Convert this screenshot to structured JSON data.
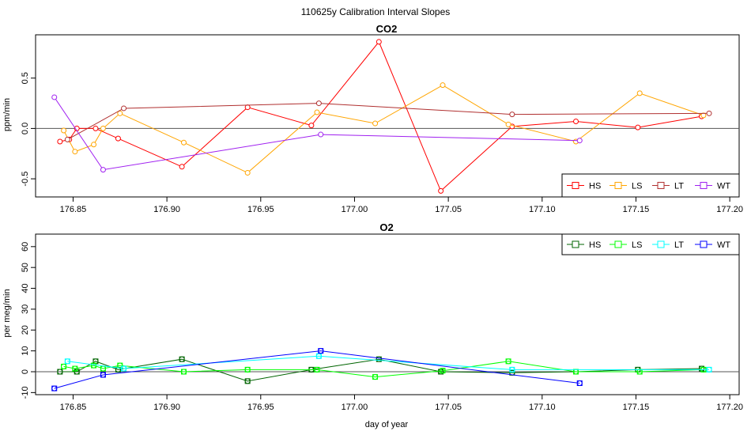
{
  "suptitle": "110625y   Calibration Interval Slopes",
  "chart_data": [
    {
      "type": "line",
      "title": "CO2",
      "xlabel": "",
      "ylabel": "ppm/min",
      "xlim": [
        176.83,
        177.205
      ],
      "ylim": [
        -0.68,
        0.93
      ],
      "xticks": [
        "176.85",
        "176.90",
        "176.95",
        "177.00",
        "177.05",
        "177.10",
        "177.15",
        "177.20"
      ],
      "yticks": [
        "-0.5",
        "0.0",
        "0.5"
      ],
      "ytick_values": [
        -0.5,
        0.0,
        0.5
      ],
      "hline": 0,
      "legend_position": "bottom-right",
      "series": [
        {
          "name": "HS",
          "color": "#FF0000",
          "x": [
            176.843,
            176.848,
            176.852,
            176.862,
            176.874,
            176.908,
            176.943,
            176.977,
            177.013,
            177.046,
            177.084,
            177.118,
            177.151,
            177.185
          ],
          "y": [
            -0.13,
            -0.11,
            0.0,
            0.0,
            -0.1,
            -0.38,
            0.21,
            0.03,
            0.86,
            -0.62,
            0.02,
            0.07,
            0.01,
            0.12
          ]
        },
        {
          "name": "LS",
          "color": "#FFA500",
          "x": [
            176.845,
            176.851,
            176.861,
            176.866,
            176.875,
            176.909,
            176.943,
            176.98,
            177.011,
            177.047,
            177.082,
            177.118,
            177.152,
            177.186
          ],
          "y": [
            -0.02,
            -0.23,
            -0.16,
            0.0,
            0.15,
            -0.14,
            -0.44,
            0.16,
            0.05,
            0.43,
            0.04,
            -0.13,
            0.35,
            0.13
          ]
        },
        {
          "name": "LT",
          "color": "#B03030",
          "x": [
            176.847,
            176.877,
            176.981,
            177.084,
            177.189
          ],
          "y": [
            -0.11,
            0.2,
            0.25,
            0.14,
            0.15
          ]
        },
        {
          "name": "WT",
          "color": "#A020F0",
          "x": [
            176.84,
            176.866,
            176.982,
            177.12
          ],
          "y": [
            0.31,
            -0.41,
            -0.06,
            -0.12
          ]
        }
      ]
    },
    {
      "type": "line",
      "title": "O2",
      "xlabel": "day of year",
      "ylabel": "per meg/min",
      "xlim": [
        176.83,
        177.205
      ],
      "ylim": [
        -11,
        66
      ],
      "xticks": [
        "176.85",
        "176.90",
        "176.95",
        "177.00",
        "177.05",
        "177.10",
        "177.15",
        "177.20"
      ],
      "yticks": [
        "-10",
        "0",
        "10",
        "20",
        "30",
        "40",
        "50",
        "60"
      ],
      "ytick_values": [
        -10,
        0,
        10,
        20,
        30,
        40,
        50,
        60
      ],
      "hline": 0,
      "legend_position": "top-right",
      "series": [
        {
          "name": "HS",
          "color": "#006400",
          "x": [
            176.843,
            176.852,
            176.862,
            176.874,
            176.908,
            176.943,
            176.977,
            177.013,
            177.046,
            177.084,
            177.118,
            177.151,
            177.185
          ],
          "y": [
            0,
            0,
            5,
            1,
            6,
            -4.5,
            1,
            6,
            0,
            -0.5,
            0,
            1,
            1.5
          ]
        },
        {
          "name": "LS",
          "color": "#00FF00",
          "x": [
            176.845,
            176.851,
            176.861,
            176.866,
            176.875,
            176.909,
            176.943,
            176.98,
            177.011,
            177.047,
            177.082,
            177.118,
            177.152,
            177.186
          ],
          "y": [
            2.5,
            1.5,
            3,
            1.5,
            3,
            0,
            1,
            1,
            -2.5,
            0.5,
            5,
            0,
            0,
            1
          ]
        },
        {
          "name": "LT",
          "color": "#00FFFF",
          "x": [
            176.847,
            176.877,
            176.981,
            177.084,
            177.189
          ],
          "y": [
            5,
            1.5,
            7.5,
            1,
            1
          ]
        },
        {
          "name": "WT",
          "color": "#0000FF",
          "x": [
            176.84,
            176.866,
            176.982,
            177.12
          ],
          "y": [
            -8,
            -1.5,
            10,
            -5.5
          ]
        }
      ]
    }
  ]
}
